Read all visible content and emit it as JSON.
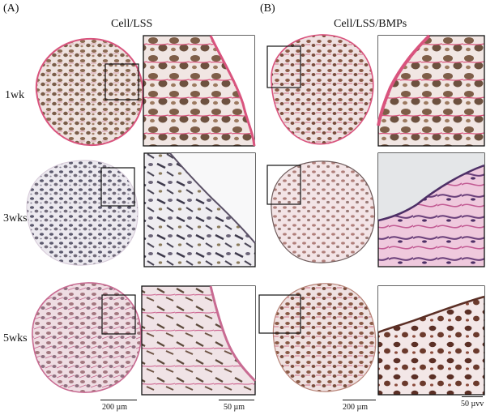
{
  "panels": {
    "a": {
      "letter": "(A)",
      "title": "Cell/LSS"
    },
    "b": {
      "letter": "(B)",
      "title": "Cell/LSS/BMPs"
    }
  },
  "rows": [
    {
      "label": "1wk"
    },
    {
      "label": "3wks"
    },
    {
      "label": "5wks"
    }
  ],
  "scale_bars": {
    "a_low": "200 µm",
    "a_high": "50 µm",
    "b_low": "200 µm",
    "b_high": "50 µvv"
  },
  "colors": {
    "stain_pink": "#d9547e",
    "stain_brown": "#8b6a52",
    "stain_purple": "#6a3f7a",
    "bg_gray": "#e4e6e8"
  }
}
